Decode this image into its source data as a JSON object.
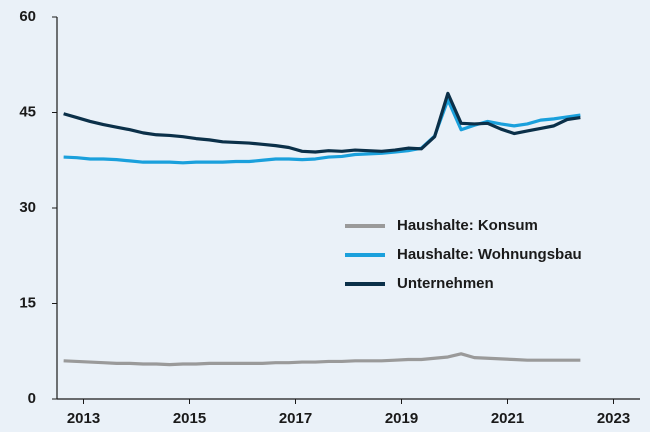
{
  "chart_data": {
    "type": "line",
    "x": [
      2012.625,
      2012.875,
      2013.125,
      2013.375,
      2013.625,
      2013.875,
      2014.125,
      2014.375,
      2014.625,
      2014.875,
      2015.125,
      2015.375,
      2015.625,
      2015.875,
      2016.125,
      2016.375,
      2016.625,
      2016.875,
      2017.125,
      2017.375,
      2017.625,
      2017.875,
      2018.125,
      2018.375,
      2018.625,
      2018.875,
      2019.125,
      2019.375,
      2019.625,
      2019.875,
      2020.125,
      2020.375,
      2020.625,
      2020.875,
      2021.125,
      2021.375,
      2021.625,
      2021.875,
      2022.125,
      2022.375
    ],
    "series": [
      {
        "name": "Haushalte: Konsum",
        "color": "#9a9a9a",
        "values": [
          6.0,
          5.9,
          5.8,
          5.7,
          5.6,
          5.6,
          5.5,
          5.5,
          5.4,
          5.5,
          5.5,
          5.6,
          5.6,
          5.6,
          5.6,
          5.6,
          5.7,
          5.7,
          5.8,
          5.8,
          5.9,
          5.9,
          6.0,
          6.0,
          6.0,
          6.1,
          6.2,
          6.2,
          6.4,
          6.6,
          7.1,
          6.5,
          6.4,
          6.3,
          6.2,
          6.1,
          6.1,
          6.1,
          6.1,
          6.1
        ]
      },
      {
        "name": "Haushalte: Wohnungsbau",
        "color": "#1aa0dc",
        "values": [
          38.0,
          37.9,
          37.7,
          37.7,
          37.6,
          37.4,
          37.2,
          37.2,
          37.2,
          37.1,
          37.2,
          37.2,
          37.2,
          37.3,
          37.3,
          37.5,
          37.7,
          37.7,
          37.6,
          37.7,
          38.0,
          38.1,
          38.4,
          38.5,
          38.6,
          38.8,
          39.0,
          39.4,
          41.3,
          47.0,
          42.3,
          43.0,
          43.6,
          43.2,
          42.9,
          43.2,
          43.8,
          44.0,
          44.3,
          44.6
        ]
      },
      {
        "name": "Unternehmen",
        "color": "#0b3049",
        "values": [
          44.8,
          44.2,
          43.6,
          43.1,
          42.7,
          42.3,
          41.8,
          41.5,
          41.4,
          41.2,
          40.9,
          40.7,
          40.4,
          40.3,
          40.2,
          40.0,
          39.8,
          39.5,
          38.9,
          38.8,
          39.0,
          38.9,
          39.1,
          39.0,
          38.9,
          39.1,
          39.4,
          39.3,
          41.2,
          48.0,
          43.3,
          43.2,
          43.3,
          42.4,
          41.7,
          42.1,
          42.5,
          42.9,
          43.9,
          44.2
        ]
      }
    ],
    "xlim": [
      2012.5,
      2023.5
    ],
    "xticks": [
      2013,
      2015,
      2017,
      2019,
      2021,
      2023
    ],
    "ylim": [
      0,
      60
    ],
    "yticks": [
      0,
      15,
      30,
      45,
      60
    ],
    "grid": false,
    "legend_position": "center-right"
  }
}
